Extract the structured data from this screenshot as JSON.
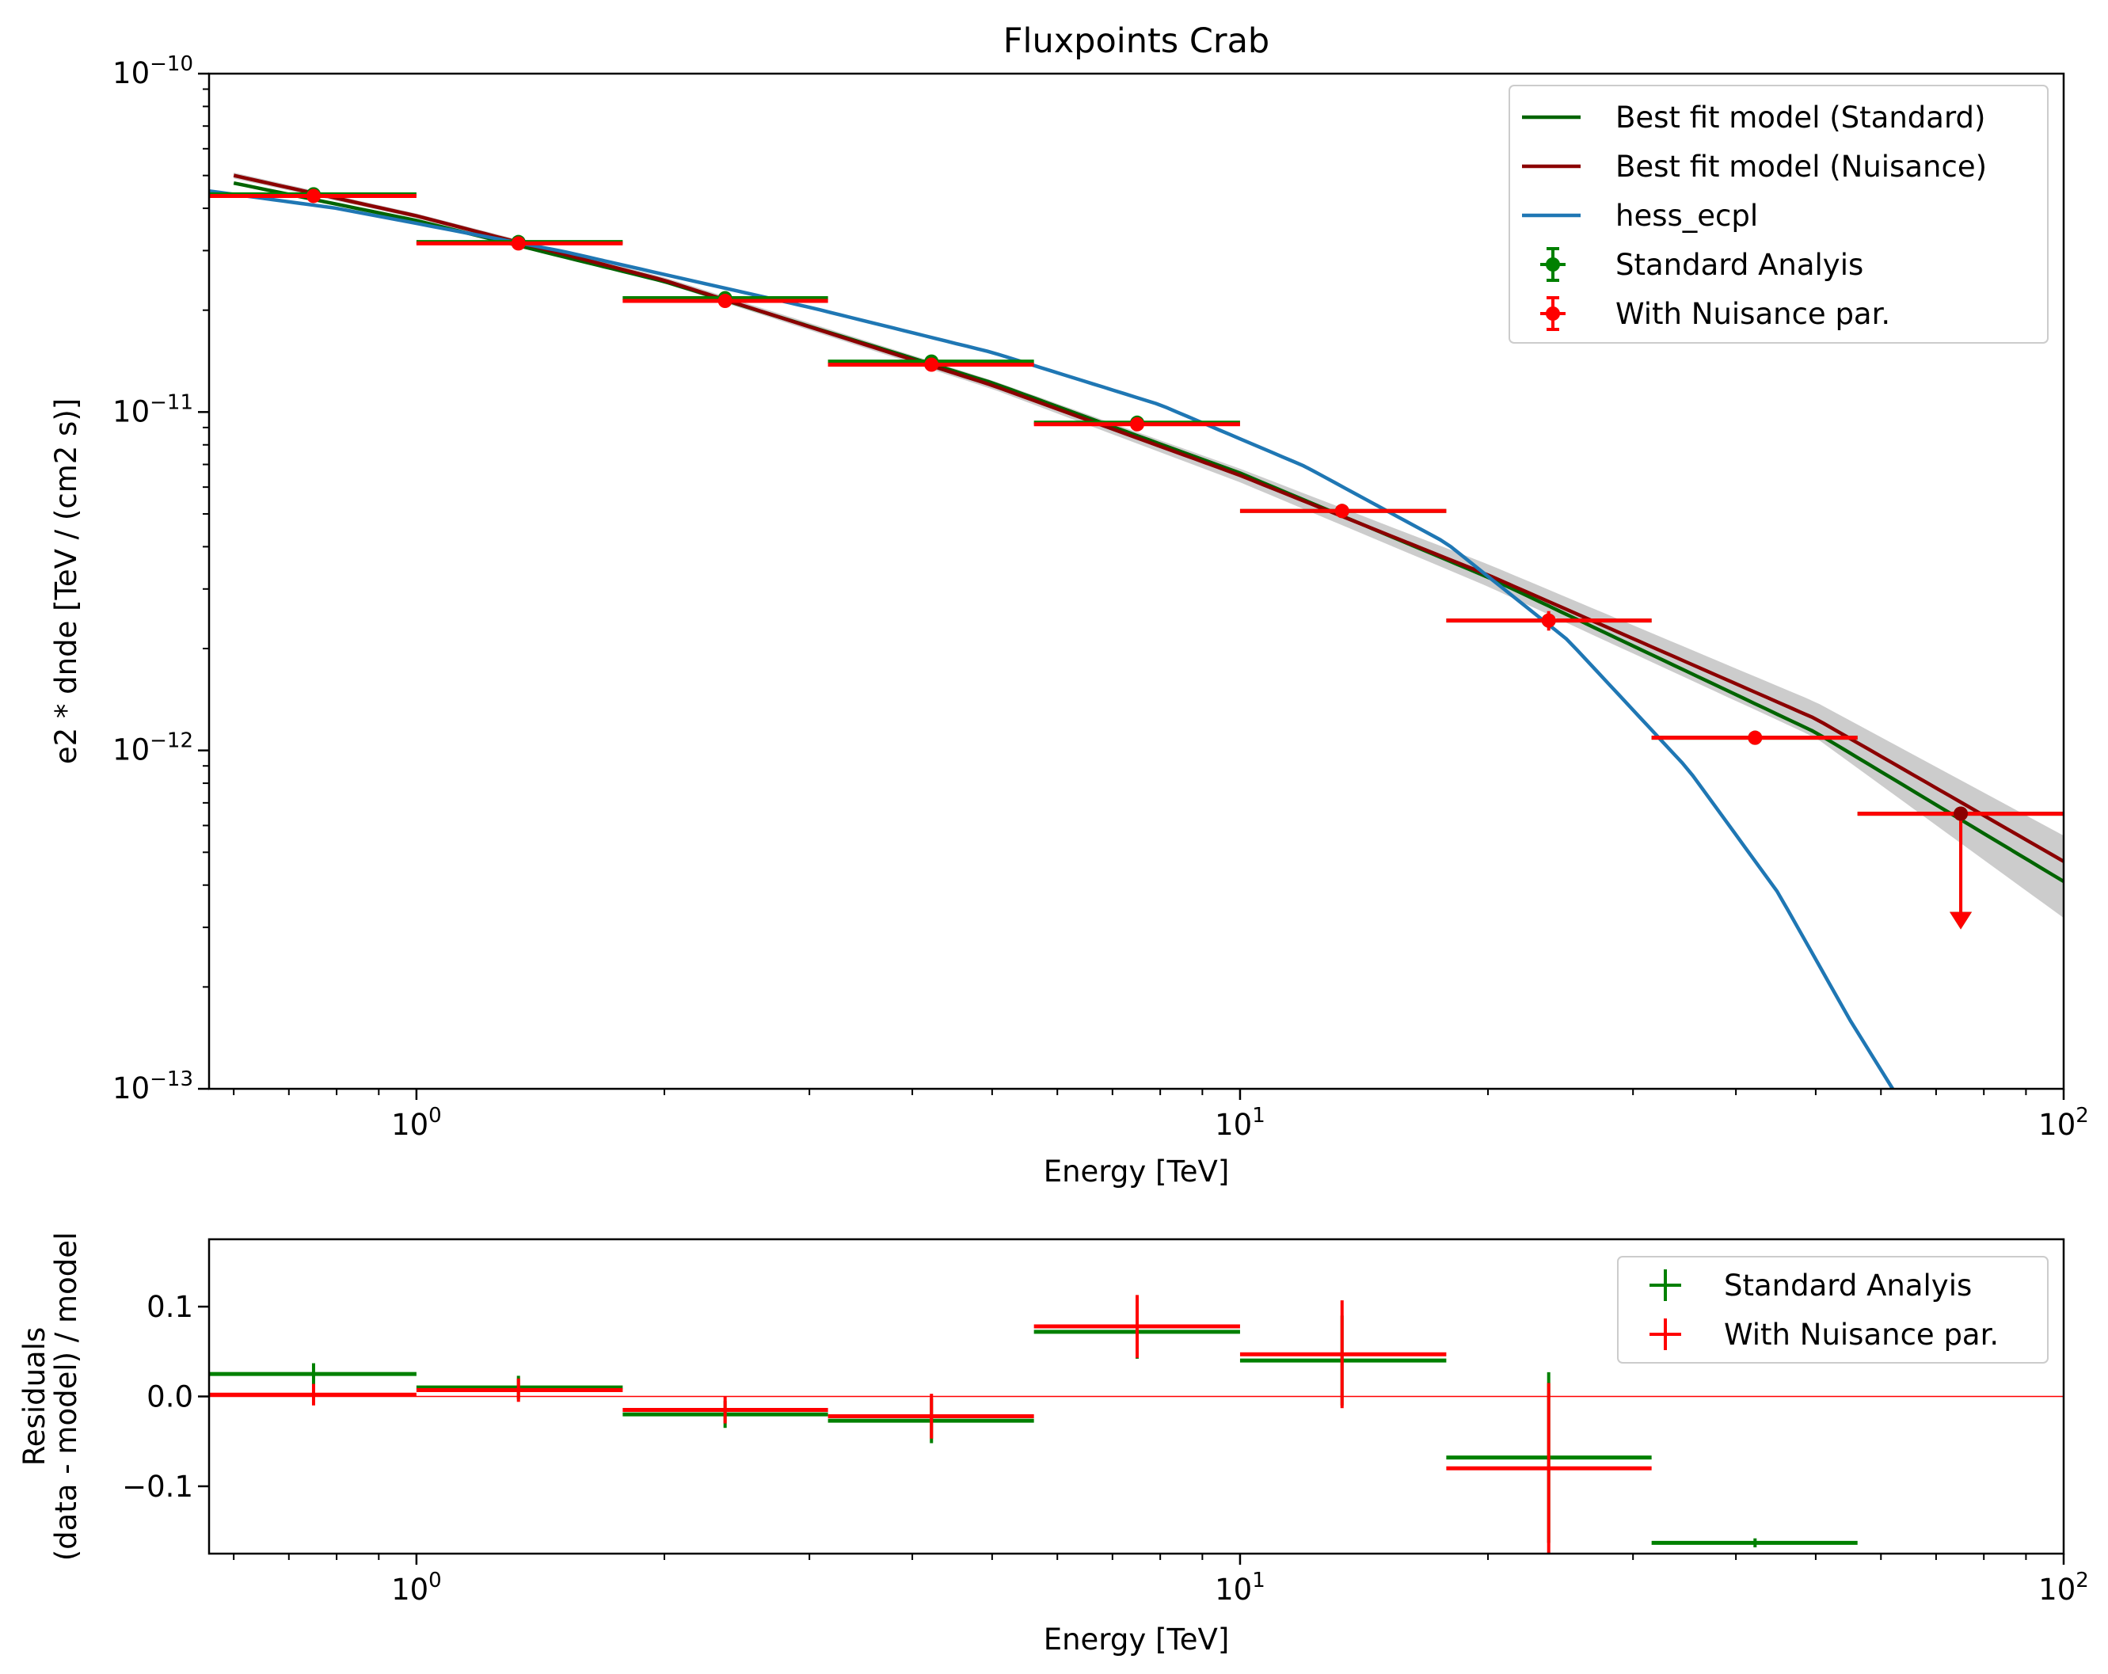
{
  "colors": {
    "standard": "#008000",
    "nuisance": "#ff0000",
    "best_fit_standard": "#006400",
    "best_fit_nuisance": "#8b0000",
    "hess_ecpl": "#1f77b4",
    "band": "#cccccc",
    "zero_line": "#ff0000"
  },
  "chart_data": [
    {
      "type": "scatter",
      "title": "Fluxpoints Crab",
      "xlabel": "Energy [TeV]",
      "ylabel": "e2 * dnde [TeV / (cm2 s)]",
      "xscale": "log",
      "yscale": "log",
      "xlim": [
        0.56,
        100
      ],
      "ylim": [
        1e-13,
        1e-10
      ],
      "x_ticks": [
        {
          "base": "10",
          "exp": "0"
        },
        {
          "base": "10",
          "exp": "1"
        },
        {
          "base": "10",
          "exp": "2"
        }
      ],
      "y_ticks": [
        {
          "base": "10",
          "exp": "−10"
        },
        {
          "base": "10",
          "exp": "−11"
        },
        {
          "base": "10",
          "exp": "−12"
        },
        {
          "base": "10",
          "exp": "−13"
        }
      ],
      "legend_position": "top-right",
      "legend": [
        {
          "label": "Best fit model (Standard)",
          "kind": "line",
          "color": "#006400"
        },
        {
          "label": "Best fit model (Nuisance)",
          "kind": "line",
          "color": "#8b0000"
        },
        {
          "label": "hess_ecpl",
          "kind": "line",
          "color": "#1f77b4"
        },
        {
          "label": "Standard Analyis",
          "kind": "errorbar",
          "color": "#008000"
        },
        {
          "label": "With Nuisance par.",
          "kind": "errorbar",
          "color": "#ff0000"
        }
      ],
      "bins": [
        {
          "xmin": 0.56,
          "xmax": 1.0,
          "x": 0.75
        },
        {
          "xmin": 1.0,
          "xmax": 1.78,
          "x": 1.33
        },
        {
          "xmin": 1.78,
          "xmax": 3.16,
          "x": 2.37
        },
        {
          "xmin": 3.16,
          "xmax": 5.62,
          "x": 4.22
        },
        {
          "xmin": 5.62,
          "xmax": 10.0,
          "x": 7.5
        },
        {
          "xmin": 10.0,
          "xmax": 17.8,
          "x": 13.3
        },
        {
          "xmin": 17.8,
          "xmax": 31.6,
          "x": 23.7
        },
        {
          "xmin": 31.6,
          "xmax": 56.2,
          "x": 42.2
        },
        {
          "xmin": 56.2,
          "xmax": 100,
          "x": 75.0
        }
      ],
      "series": [
        {
          "name": "Standard Analyis",
          "y": [
            4.4e-11,
            3.18e-11,
            2.17e-11,
            1.41e-11,
            9.3e-12,
            5.1e-12,
            2.42e-12,
            1.09e-12,
            6.5e-13
          ],
          "y_err": [
            6e-13,
            4e-13,
            3e-13,
            2e-13,
            1.6e-13,
            1.4e-13,
            1.2e-13,
            5e-14,
            0
          ],
          "upper_limit": [
            false,
            false,
            false,
            false,
            false,
            false,
            false,
            false,
            true
          ]
        },
        {
          "name": "With Nuisance par.",
          "y": [
            4.35e-11,
            3.15e-11,
            2.13e-11,
            1.38e-11,
            9.2e-12,
            5.1e-12,
            2.42e-12,
            1.09e-12,
            6.5e-13
          ],
          "y_err": [
            6e-13,
            4e-13,
            3e-13,
            2e-13,
            1.6e-13,
            1.4e-13,
            1.6e-13,
            5e-14,
            0
          ],
          "upper_limit": [
            false,
            false,
            false,
            false,
            false,
            false,
            false,
            false,
            true
          ]
        }
      ],
      "models": [
        {
          "name": "Best fit model (Standard)",
          "x": [
            0.6,
            1,
            2,
            5,
            10,
            20,
            50,
            100
          ],
          "y": [
            4.75e-11,
            3.68e-11,
            2.43e-11,
            1.22e-11,
            6.6e-12,
            3.25e-12,
            1.13e-12,
            4.1e-13
          ]
        },
        {
          "name": "Best fit model (Nuisance)",
          "x": [
            0.6,
            1,
            2,
            5,
            10,
            20,
            50,
            100
          ],
          "y": [
            5e-11,
            3.8e-11,
            2.45e-11,
            1.2e-11,
            6.5e-12,
            3.3e-12,
            1.24e-12,
            4.7e-13
          ]
        },
        {
          "name": "hess_ecpl",
          "x": [
            0.56,
            0.8,
            1,
            1.5,
            2,
            3,
            5,
            8,
            12,
            17.8,
            25,
            35,
            45,
            55,
            62
          ],
          "y": [
            4.5e-11,
            4e-11,
            3.61e-11,
            2.99e-11,
            2.55e-11,
            2.04e-11,
            1.5e-11,
            1.05e-11,
            6.9e-12,
            4.1e-12,
            2.12e-12,
            8.8e-13,
            3.8e-13,
            1.6e-13,
            1e-13
          ]
        }
      ],
      "band": {
        "x": [
          0.6,
          1,
          2,
          5,
          10,
          20,
          50,
          100
        ],
        "y_low": [
          4.9e-11,
          3.74e-11,
          2.4e-11,
          1.17e-11,
          6.2e-12,
          3.05e-12,
          1.09e-12,
          3.2e-13
        ],
        "y_high": [
          5.1e-11,
          3.86e-11,
          2.5e-11,
          1.24e-11,
          6.8e-12,
          3.55e-12,
          1.39e-12,
          5.6e-13
        ]
      }
    },
    {
      "type": "scatter",
      "xlabel": "Energy [TeV]",
      "ylabel_lines": [
        "Residuals",
        "(data - model) / model"
      ],
      "xscale": "log",
      "xlim": [
        0.56,
        100
      ],
      "ylim": [
        -0.175,
        0.175
      ],
      "x_ticks": [
        {
          "base": "10",
          "exp": "0"
        },
        {
          "base": "10",
          "exp": "1"
        },
        {
          "base": "10",
          "exp": "2"
        }
      ],
      "y_ticks": [
        {
          "value": 0.1,
          "label": "0.1"
        },
        {
          "value": 0.0,
          "label": "0.0"
        },
        {
          "value": -0.1,
          "label": "−0.1"
        }
      ],
      "reference_line": 0.0,
      "legend_position": "top-right",
      "legend": [
        {
          "label": "Standard Analyis",
          "kind": "cross",
          "color": "#008000"
        },
        {
          "label": "With Nuisance par.",
          "kind": "cross",
          "color": "#ff0000"
        }
      ],
      "series": [
        {
          "name": "Standard Analyis",
          "y": [
            0.025,
            0.01,
            -0.02,
            -0.027,
            0.072,
            0.04,
            -0.068,
            -0.163
          ],
          "y_err": [
            0.012,
            0.013,
            0.015,
            0.025,
            0.03,
            0.05,
            0.095,
            0.005
          ]
        },
        {
          "name": "With Nuisance par.",
          "y": [
            0.002,
            0.007,
            -0.015,
            -0.022,
            0.078,
            0.047,
            -0.08,
            null
          ],
          "y_err": [
            0.012,
            0.013,
            0.015,
            0.025,
            0.035,
            0.06,
            0.095,
            null
          ]
        }
      ]
    }
  ]
}
